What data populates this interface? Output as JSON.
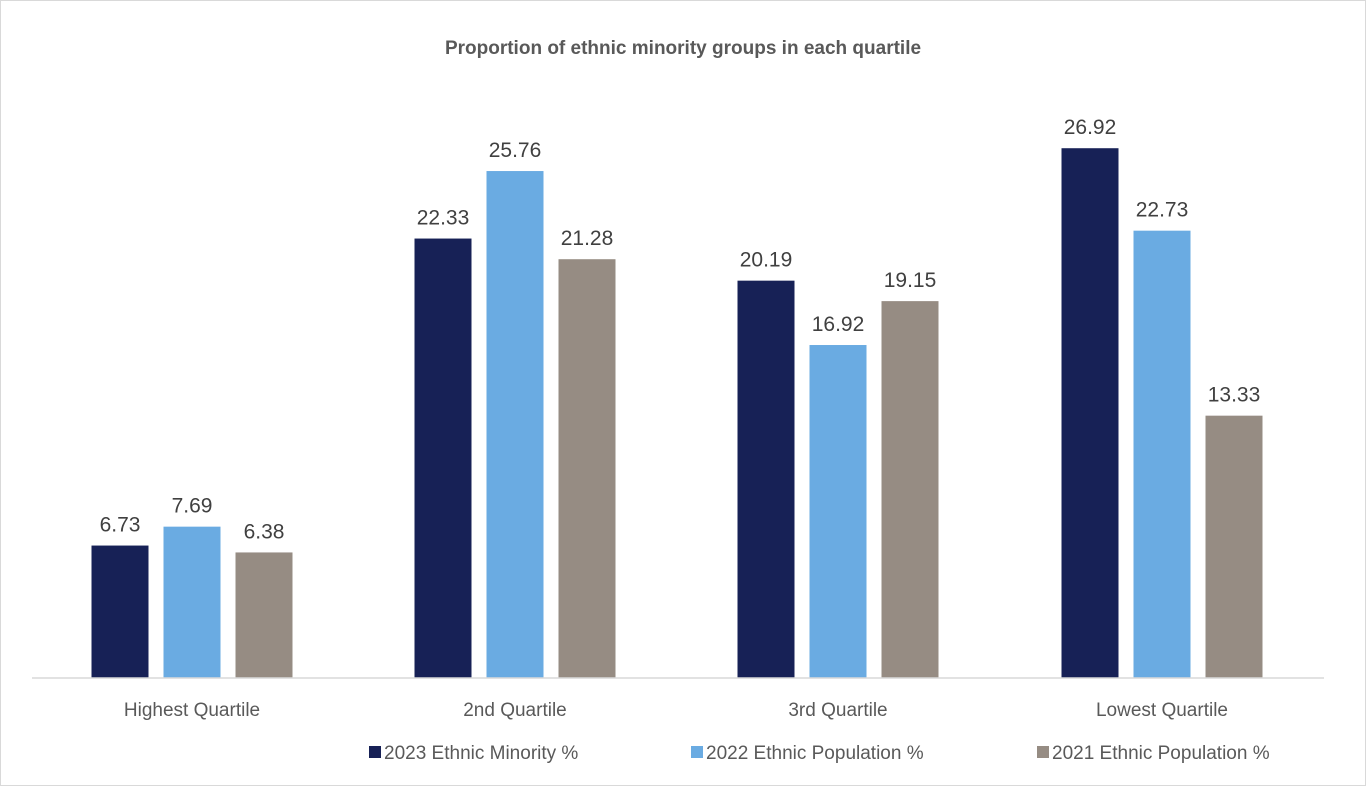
{
  "chart_data": {
    "type": "bar",
    "title": "Proportion of ethnic minority groups in each quartile",
    "xlabel": "",
    "ylabel": "",
    "ylim": [
      0,
      30
    ],
    "grid": false,
    "legend_position": "bottom-right",
    "categories": [
      "Highest Quartile",
      "2nd Quartile",
      "3rd Quartile",
      "Lowest Quartile"
    ],
    "series": [
      {
        "name": "2023 Ethnic Minority %",
        "color": "#172156",
        "values": [
          6.73,
          22.33,
          20.19,
          26.92
        ],
        "labels": [
          "6.73",
          "22.33",
          "20.19",
          "26.92"
        ]
      },
      {
        "name": "2022 Ethnic Population %",
        "color": "#6aabe2",
        "values": [
          7.69,
          25.76,
          16.92,
          22.73
        ],
        "labels": [
          "7.69",
          "25.76",
          "16.92",
          "22.73"
        ]
      },
      {
        "name": "2021 Ethnic Population %",
        "color": "#968c83",
        "values": [
          6.38,
          21.28,
          19.15,
          13.33
        ],
        "labels": [
          "6.38",
          "21.28",
          "19.15",
          "13.33"
        ]
      }
    ]
  }
}
